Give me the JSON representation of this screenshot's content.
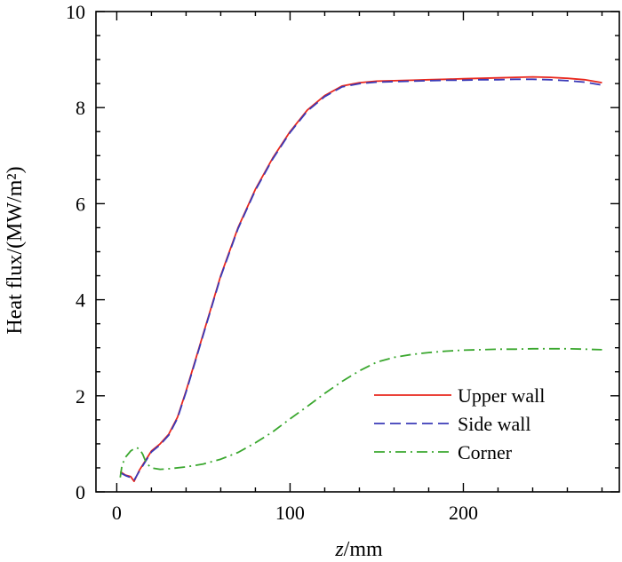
{
  "chart_data": {
    "type": "line",
    "xlabel_italic": "z",
    "xlabel_rest": "/mm",
    "ylabel": "Heat flux/(MW/m²)",
    "xlim": [
      -12,
      290
    ],
    "ylim": [
      0,
      10
    ],
    "x_ticks": [
      0,
      100,
      200
    ],
    "y_ticks": [
      0,
      2,
      4,
      6,
      8,
      10
    ],
    "x_minor_step": 20,
    "y_minor_step": 0.5,
    "grid": false,
    "legend_position": "bottom-right",
    "series": [
      {
        "name": "Upper wall",
        "color": "#e8271d",
        "dash": "solid",
        "x": [
          2,
          5,
          8,
          10,
          13,
          16,
          20,
          25,
          30,
          35,
          40,
          45,
          50,
          55,
          60,
          70,
          80,
          90,
          100,
          110,
          120,
          130,
          140,
          150,
          160,
          170,
          180,
          190,
          200,
          210,
          220,
          230,
          240,
          250,
          260,
          270,
          280
        ],
        "y": [
          0.42,
          0.35,
          0.32,
          0.22,
          0.45,
          0.62,
          0.85,
          1.0,
          1.2,
          1.55,
          2.1,
          2.7,
          3.3,
          3.9,
          4.5,
          5.5,
          6.3,
          6.95,
          7.5,
          7.95,
          8.25,
          8.45,
          8.52,
          8.55,
          8.56,
          8.57,
          8.58,
          8.59,
          8.6,
          8.61,
          8.62,
          8.63,
          8.64,
          8.63,
          8.61,
          8.58,
          8.52
        ]
      },
      {
        "name": "Side wall",
        "color": "#3a3ab8",
        "dash": "dashed",
        "x": [
          2,
          5,
          8,
          10,
          13,
          16,
          20,
          25,
          30,
          35,
          40,
          45,
          50,
          55,
          60,
          70,
          80,
          90,
          100,
          110,
          120,
          130,
          140,
          150,
          160,
          170,
          180,
          190,
          200,
          210,
          220,
          230,
          240,
          250,
          260,
          270,
          280
        ],
        "y": [
          0.4,
          0.34,
          0.3,
          0.24,
          0.43,
          0.6,
          0.83,
          0.98,
          1.18,
          1.53,
          2.08,
          2.68,
          3.28,
          3.88,
          4.48,
          5.48,
          6.28,
          6.93,
          7.48,
          7.93,
          8.23,
          8.43,
          8.5,
          8.53,
          8.54,
          8.55,
          8.56,
          8.57,
          8.57,
          8.58,
          8.58,
          8.59,
          8.59,
          8.58,
          8.56,
          8.53,
          8.47
        ]
      },
      {
        "name": "Corner",
        "color": "#3aa72e",
        "dash": "dashdot",
        "x": [
          2,
          3,
          5,
          8,
          11,
          13,
          15,
          17,
          20,
          25,
          30,
          40,
          50,
          60,
          70,
          80,
          90,
          100,
          110,
          120,
          130,
          140,
          150,
          160,
          170,
          180,
          190,
          200,
          210,
          220,
          230,
          240,
          250,
          260,
          270,
          280
        ],
        "y": [
          0.3,
          0.55,
          0.72,
          0.85,
          0.92,
          0.9,
          0.78,
          0.6,
          0.5,
          0.47,
          0.48,
          0.52,
          0.58,
          0.68,
          0.82,
          1.02,
          1.25,
          1.52,
          1.78,
          2.05,
          2.3,
          2.52,
          2.7,
          2.8,
          2.86,
          2.9,
          2.93,
          2.95,
          2.96,
          2.97,
          2.97,
          2.98,
          2.98,
          2.98,
          2.97,
          2.96
        ]
      }
    ]
  }
}
